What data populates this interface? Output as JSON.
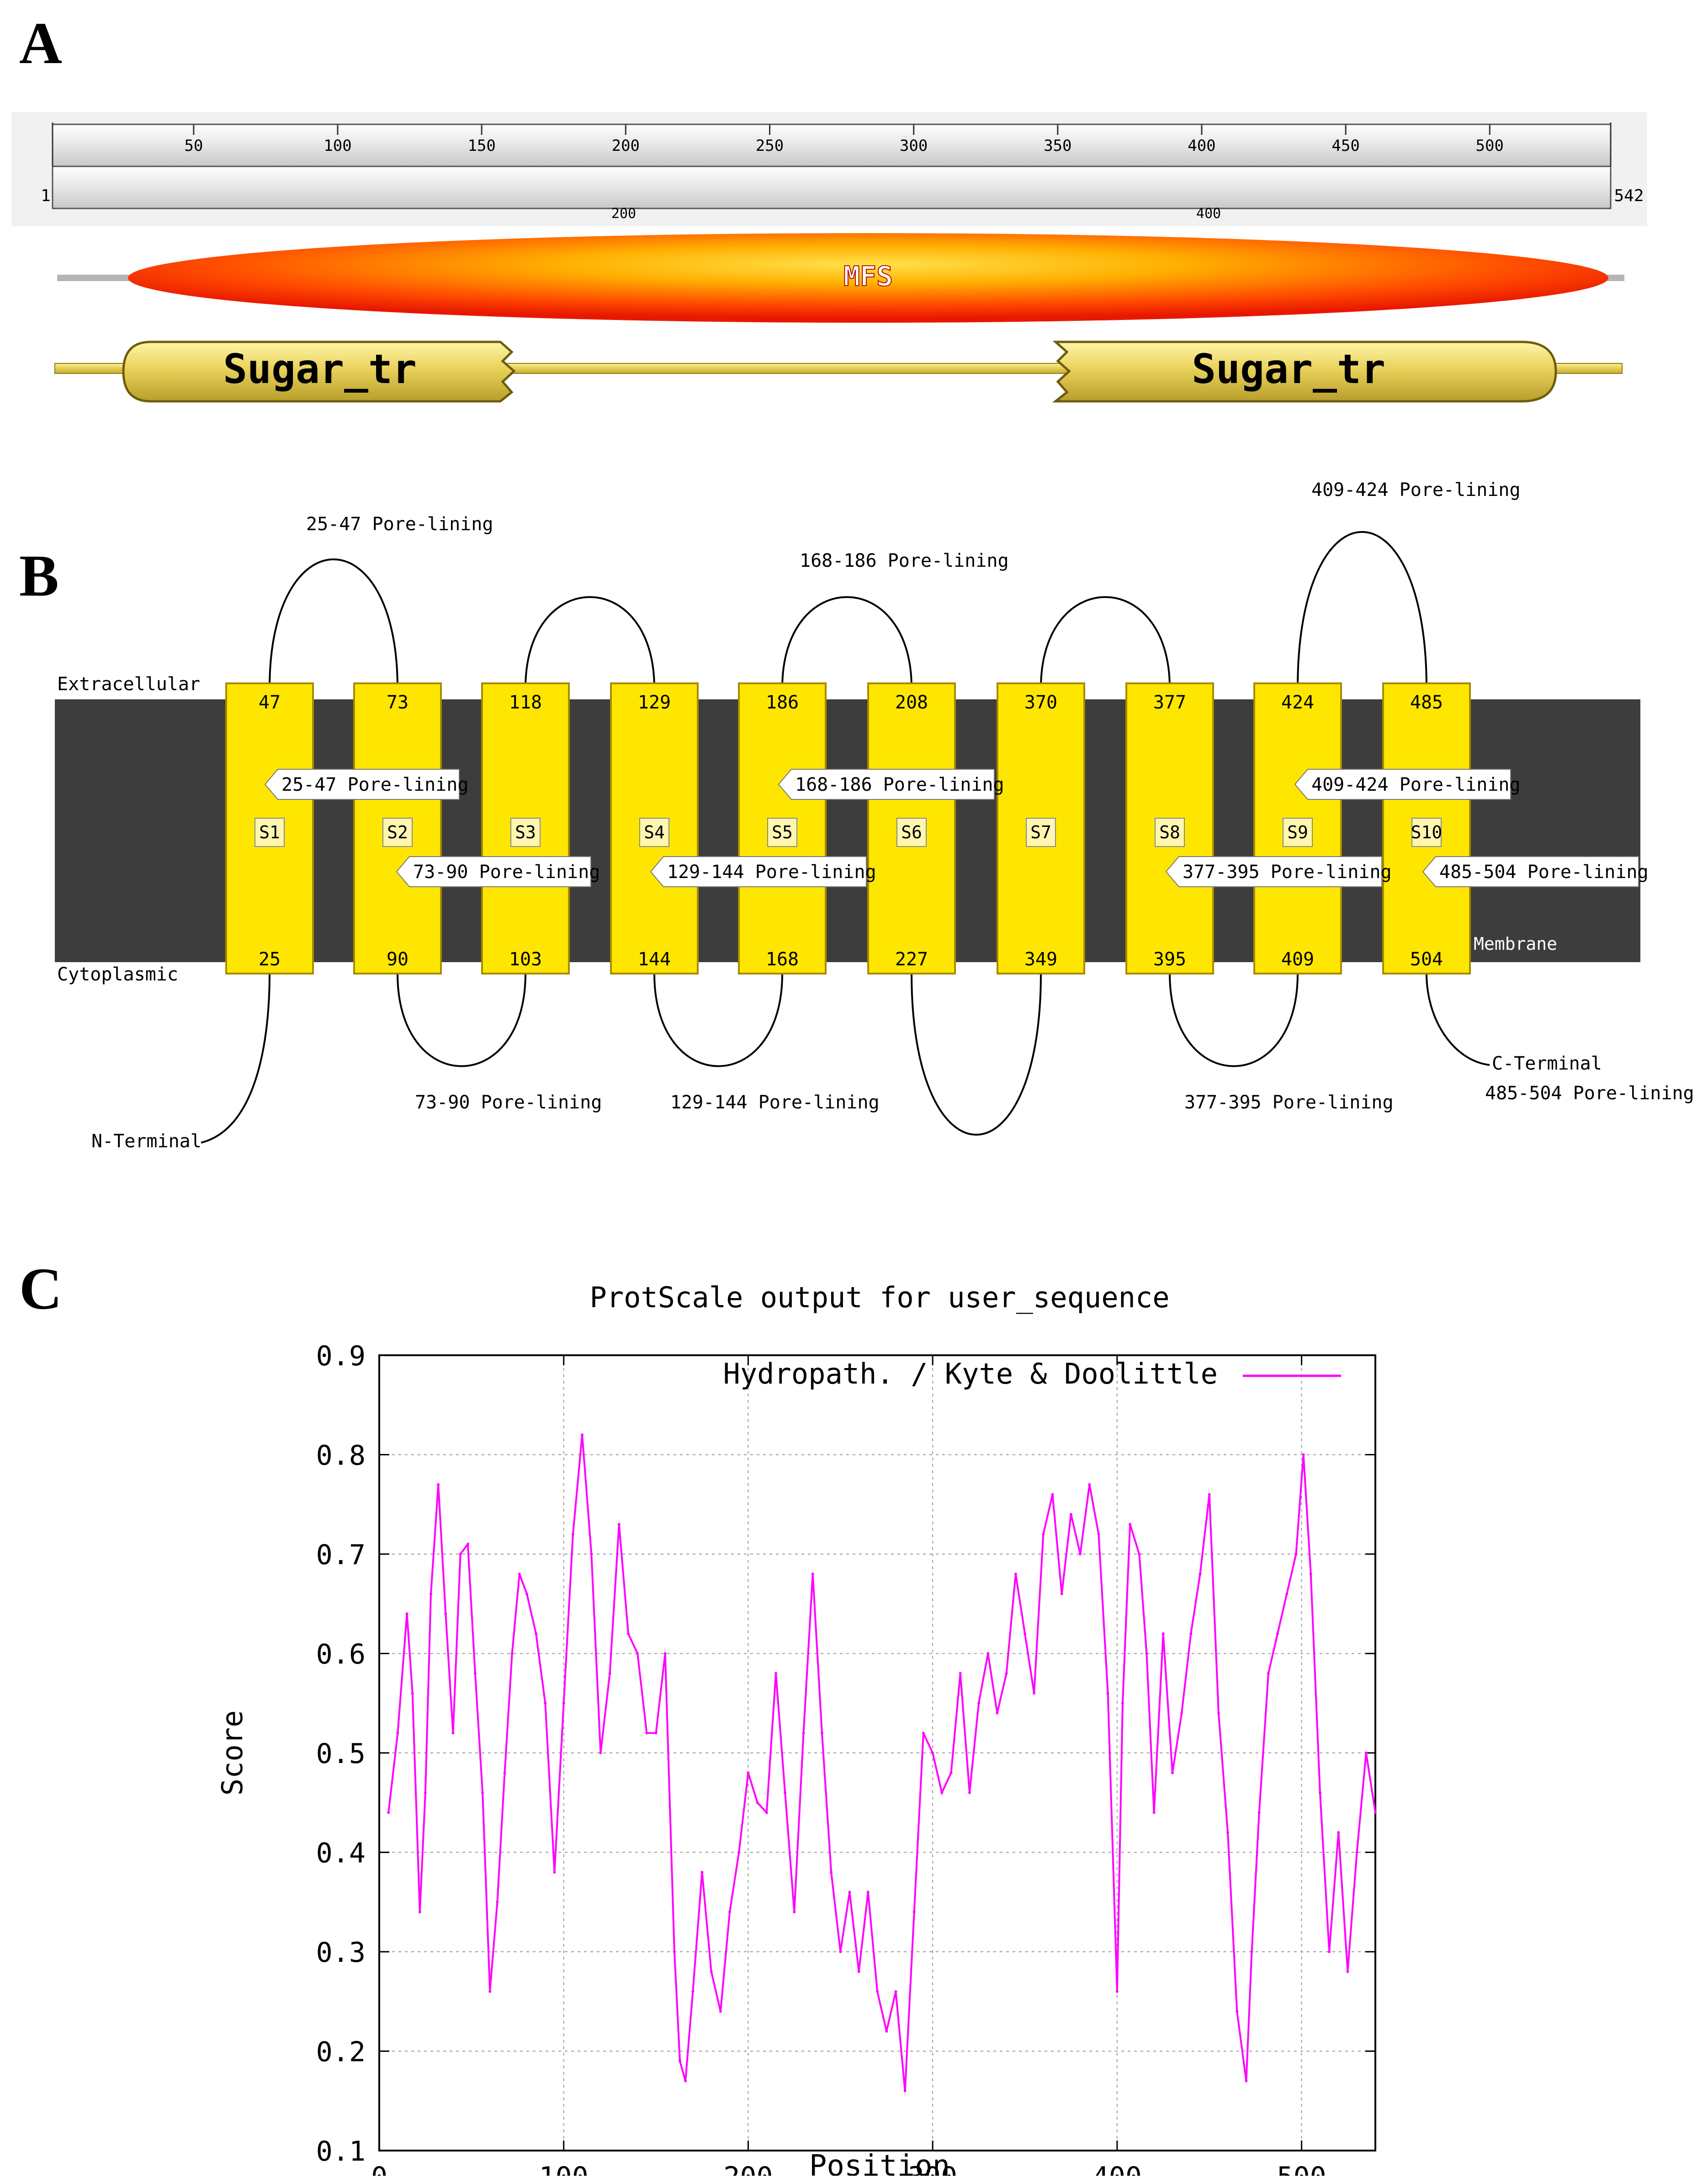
{
  "panels": {
    "a": "A",
    "b": "B",
    "c": "C"
  },
  "panel_a": {
    "ruler_ticks": [
      "50",
      "100",
      "150",
      "200",
      "250",
      "300",
      "350",
      "400",
      "450",
      "500"
    ],
    "ruler_start": "1",
    "ruler_end": "542",
    "ruler_minor_labels": [
      "200",
      "400"
    ],
    "domain_mfs": "MFS",
    "pfam_left": "Sugar_tr",
    "pfam_right": "Sugar_tr",
    "colors": {
      "mfs_outer": "#ff2a00",
      "mfs_inner": "#ffd21a",
      "pfam": "#e8d25a",
      "ruler": "#d6d6d6"
    }
  },
  "panel_b": {
    "extracellular": "Extracellular",
    "cytoplasmic": "Cytoplasmic",
    "membrane": "Membrane",
    "n_terminal": "N-Terminal",
    "c_terminal": "C-Terminal",
    "helices": [
      {
        "name": "S1",
        "top": "47",
        "bottom": "25"
      },
      {
        "name": "S2",
        "top": "73",
        "bottom": "90"
      },
      {
        "name": "S3",
        "top": "118",
        "bottom": "103"
      },
      {
        "name": "S4",
        "top": "129",
        "bottom": "144"
      },
      {
        "name": "S5",
        "top": "186",
        "bottom": "168"
      },
      {
        "name": "S6",
        "top": "208",
        "bottom": "227"
      },
      {
        "name": "S7",
        "top": "370",
        "bottom": "349"
      },
      {
        "name": "S8",
        "top": "377",
        "bottom": "395"
      },
      {
        "name": "S9",
        "top": "424",
        "bottom": "409"
      },
      {
        "name": "S10",
        "top": "485",
        "bottom": "504"
      }
    ],
    "tag_labels": [
      "25-47 Pore-lining",
      "73-90 Pore-lining",
      "168-186 Pore-lining",
      "129-144 Pore-lining",
      "409-424 Pore-lining",
      "377-395 Pore-lining",
      "485-504 Pore-lining"
    ],
    "loop_labels": {
      "l1": "25-47 Pore-lining",
      "l2": "168-186 Pore-lining",
      "l3": "409-424 Pore-lining",
      "l4": "73-90 Pore-lining",
      "l5": "129-144 Pore-lining",
      "l6": "377-395 Pore-lining",
      "l7": "485-504 Pore-lining"
    },
    "colors": {
      "membrane": "#3d3d3d",
      "helix": "#ffe600",
      "helix_border": "#b89a00"
    }
  },
  "chart_data": {
    "type": "line",
    "title": "ProtScale output for user_sequence",
    "xlabel": "Position",
    "ylabel": "Score",
    "xlim": [
      0,
      540
    ],
    "ylim": [
      0.1,
      0.9
    ],
    "xticks": [
      "0",
      "100",
      "200",
      "300",
      "400",
      "500"
    ],
    "yticks": [
      "0.1",
      "0.2",
      "0.3",
      "0.4",
      "0.5",
      "0.6",
      "0.7",
      "0.8",
      "0.9"
    ],
    "grid": true,
    "legend_position": "top-right",
    "series": [
      {
        "name": "Hydropath. / Kyte & Doolittle",
        "color": "#ff00ff",
        "x": [
          5,
          10,
          15,
          18,
          22,
          25,
          28,
          32,
          36,
          40,
          44,
          48,
          52,
          56,
          60,
          64,
          68,
          72,
          76,
          80,
          85,
          90,
          95,
          100,
          105,
          110,
          115,
          120,
          125,
          130,
          135,
          140,
          145,
          150,
          155,
          160,
          163,
          166,
          170,
          175,
          180,
          185,
          190,
          195,
          200,
          205,
          210,
          215,
          220,
          225,
          230,
          235,
          240,
          245,
          250,
          255,
          260,
          265,
          270,
          275,
          280,
          285,
          290,
          295,
          300,
          305,
          310,
          315,
          320,
          325,
          330,
          335,
          340,
          345,
          350,
          355,
          360,
          365,
          370,
          375,
          380,
          385,
          390,
          395,
          400,
          403,
          407,
          412,
          416,
          420,
          425,
          430,
          435,
          440,
          445,
          450,
          455,
          460,
          465,
          470,
          473,
          477,
          482,
          487,
          492,
          497,
          501,
          505,
          510,
          515,
          520,
          525,
          530,
          535,
          540
        ],
        "y": [
          0.44,
          0.52,
          0.64,
          0.56,
          0.34,
          0.46,
          0.66,
          0.77,
          0.64,
          0.52,
          0.7,
          0.71,
          0.58,
          0.46,
          0.26,
          0.35,
          0.48,
          0.6,
          0.68,
          0.66,
          0.62,
          0.55,
          0.38,
          0.55,
          0.72,
          0.82,
          0.7,
          0.5,
          0.58,
          0.73,
          0.62,
          0.6,
          0.52,
          0.52,
          0.6,
          0.3,
          0.19,
          0.17,
          0.26,
          0.38,
          0.28,
          0.24,
          0.34,
          0.4,
          0.48,
          0.45,
          0.44,
          0.58,
          0.46,
          0.34,
          0.52,
          0.68,
          0.52,
          0.38,
          0.3,
          0.36,
          0.28,
          0.36,
          0.26,
          0.22,
          0.26,
          0.16,
          0.34,
          0.52,
          0.5,
          0.46,
          0.48,
          0.58,
          0.46,
          0.55,
          0.6,
          0.54,
          0.58,
          0.68,
          0.62,
          0.56,
          0.72,
          0.76,
          0.66,
          0.74,
          0.7,
          0.77,
          0.72,
          0.56,
          0.26,
          0.55,
          0.73,
          0.7,
          0.6,
          0.44,
          0.62,
          0.48,
          0.54,
          0.62,
          0.68,
          0.76,
          0.54,
          0.42,
          0.24,
          0.17,
          0.3,
          0.44,
          0.58,
          0.62,
          0.66,
          0.7,
          0.8,
          0.68,
          0.46,
          0.3,
          0.42,
          0.28,
          0.4,
          0.5,
          0.44
        ]
      }
    ]
  }
}
